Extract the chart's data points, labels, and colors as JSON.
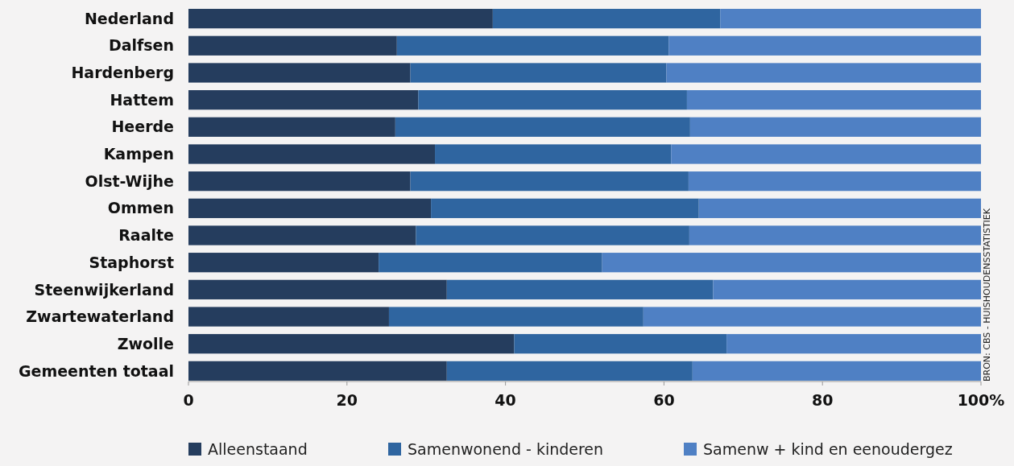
{
  "chart_data": {
    "type": "bar",
    "orientation": "horizontal",
    "stacked": true,
    "categories": [
      "Nederland",
      "Dalfsen",
      "Hardenberg",
      "Hattem",
      "Heerde",
      "Kampen",
      "Olst-Wijhe",
      "Ommen",
      "Raalte",
      "Staphorst",
      "Steenwijkerland",
      "Zwartewaterland",
      "Zwolle",
      "Gemeenten totaal"
    ],
    "series": [
      {
        "name": "Alleenstaand",
        "color": "#253d5e",
        "values": [
          38.4,
          26.3,
          28.0,
          29.0,
          26.1,
          31.1,
          28.0,
          30.6,
          28.7,
          24.0,
          32.6,
          25.3,
          41.1,
          32.6
        ]
      },
      {
        "name": "Samenwonend - kinderen",
        "color": "#2f65a0",
        "values": [
          28.7,
          34.3,
          32.3,
          33.9,
          37.2,
          29.8,
          35.1,
          33.8,
          34.5,
          28.2,
          33.6,
          32.1,
          26.8,
          31.0
        ]
      },
      {
        "name": "Samenw + kind en eenoudergez",
        "color": "#4f80c4",
        "values": [
          32.9,
          39.4,
          39.7,
          37.1,
          36.7,
          39.1,
          36.9,
          35.6,
          36.8,
          47.8,
          33.8,
          42.6,
          32.1,
          36.4
        ]
      }
    ],
    "xlim": [
      0,
      100
    ],
    "xticks": [
      0,
      20,
      40,
      60,
      80,
      {
        "value": 100,
        "label": "100%"
      }
    ],
    "legend": "bottom",
    "annotations": [
      "BRON: CBS - HUISHOUDENSSTATISTIEK"
    ]
  }
}
